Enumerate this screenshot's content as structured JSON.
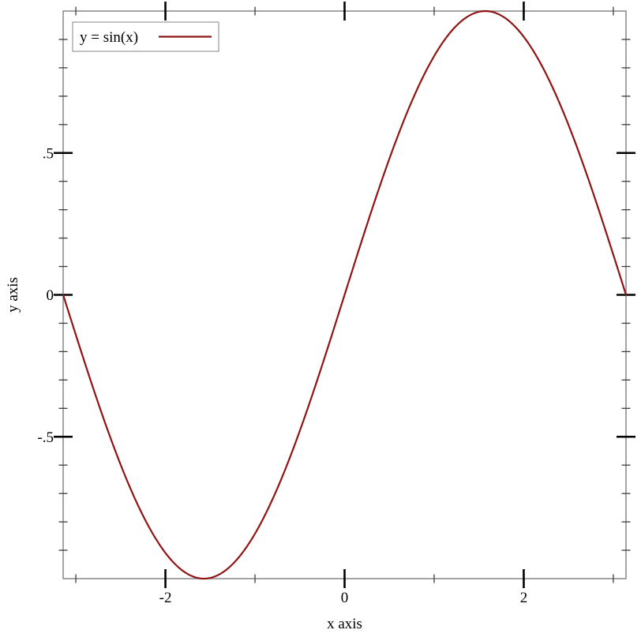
{
  "chart_data": {
    "type": "line",
    "title": "",
    "xlabel": "x axis",
    "ylabel": "y axis",
    "xlim": [
      -3.141592653589793,
      3.141592653589793
    ],
    "ylim": [
      -1,
      1
    ],
    "grid": false,
    "series": [
      {
        "name": "y = sin(x)",
        "function": "sin",
        "x_range": [
          -3.141592653589793,
          3.141592653589793
        ],
        "color": "#901414",
        "key_points": [
          {
            "x": -3.142,
            "y": 0
          },
          {
            "x": -2.618,
            "y": -0.5
          },
          {
            "x": -2.094,
            "y": -0.866
          },
          {
            "x": -1.571,
            "y": -1
          },
          {
            "x": -1.047,
            "y": -0.866
          },
          {
            "x": -0.524,
            "y": -0.5
          },
          {
            "x": 0,
            "y": 0
          },
          {
            "x": 0.524,
            "y": 0.5
          },
          {
            "x": 1.047,
            "y": 0.866
          },
          {
            "x": 1.571,
            "y": 1
          },
          {
            "x": 2.094,
            "y": 0.866
          },
          {
            "x": 2.618,
            "y": 0.5
          },
          {
            "x": 3.142,
            "y": 0
          }
        ]
      }
    ],
    "x_major_ticks": [
      {
        "value": -2,
        "label": "-2"
      },
      {
        "value": 0,
        "label": "0"
      },
      {
        "value": 2,
        "label": "2"
      }
    ],
    "x_minor_ticks": [
      -3,
      -1,
      1,
      3
    ],
    "y_major_ticks": [
      {
        "value": 0.5,
        "label": ".5"
      },
      {
        "value": 0,
        "label": "0"
      },
      {
        "value": -0.5,
        "label": "-.5"
      }
    ],
    "y_minor_ticks": [
      -0.9,
      -0.8,
      -0.7,
      -0.6,
      -0.4,
      -0.3,
      -0.2,
      -0.1,
      0.1,
      0.2,
      0.3,
      0.4,
      0.6,
      0.7,
      0.8,
      0.9
    ],
    "legend": {
      "position": "top-left",
      "entries": [
        {
          "label": "y = sin(x)",
          "color": "#901414"
        }
      ]
    },
    "colors": {
      "background": "#ffffff",
      "frame": "#878787",
      "major_tick": "#000000",
      "minor_tick": "#3d3d3d",
      "line": "#901414",
      "legend_border": "#999999",
      "text": "#000000"
    }
  }
}
